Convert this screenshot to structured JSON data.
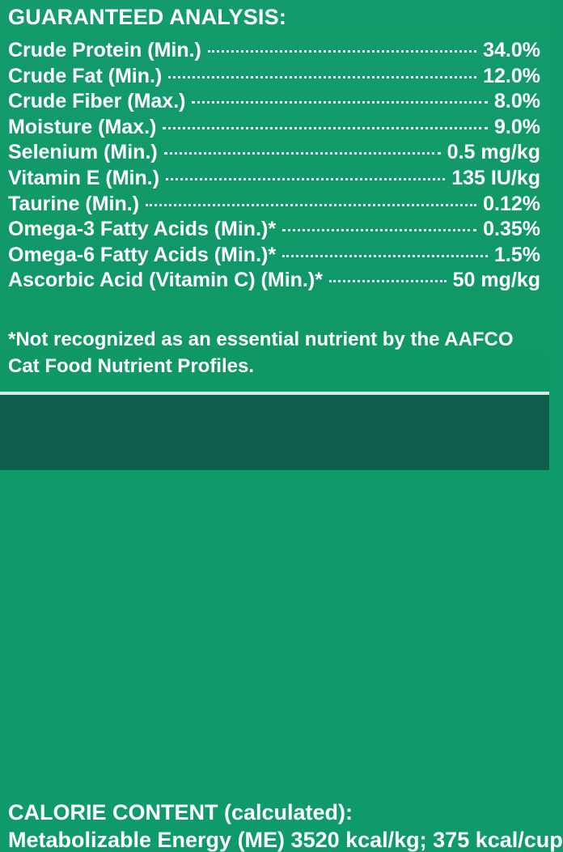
{
  "analysis": {
    "title": "GUARANTEED ANALYSIS:",
    "rows": [
      {
        "label": "Crude Protein (Min.)",
        "value": "34.0%"
      },
      {
        "label": "Crude Fat (Min.)",
        "value": "12.0%"
      },
      {
        "label": "Crude Fiber (Max.)",
        "value": "8.0%"
      },
      {
        "label": "Moisture (Max.)",
        "value": "9.0%"
      },
      {
        "label": "Selenium (Min.)",
        "value": "0.5 mg/kg"
      },
      {
        "label": "Vitamin E (Min.)",
        "value": "135 IU/kg"
      },
      {
        "label": "Taurine (Min.)",
        "value": "0.12%"
      },
      {
        "label": "Omega-3 Fatty Acids (Min.)*",
        "value": "0.35%"
      },
      {
        "label": "Omega-6 Fatty Acids (Min.)*",
        "value": "1.5%"
      },
      {
        "label": "Ascorbic Acid (Vitamin C) (Min.)*",
        "value": "50 mg/kg"
      }
    ],
    "footnote": "*Not recognized as an essential nutrient by the AAFCO Cat Food Nutrient Profiles."
  },
  "calorie": {
    "title": "CALORIE CONTENT (calculated):",
    "line": "Metabolizable Energy (ME) 3520 kcal/kg;  375 kcal/cup"
  },
  "colors": {
    "top_background": "#119a69",
    "bottom_background": "#0d5e4b",
    "divider": "#d8e7df",
    "text": "#ffffff"
  }
}
